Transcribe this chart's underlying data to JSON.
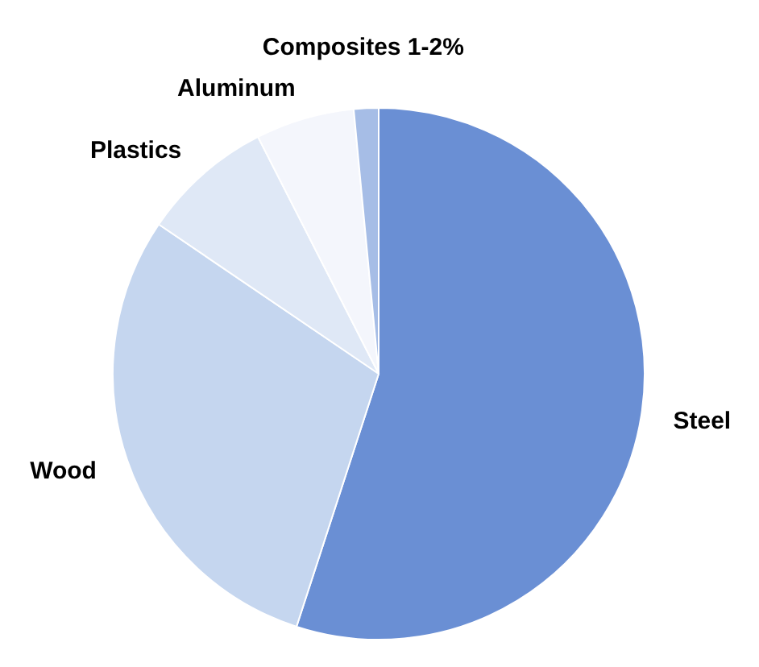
{
  "chart_data": {
    "type": "pie",
    "categories": [
      "Steel",
      "Wood",
      "Plastics",
      "Aluminum",
      "Composites 1-2%"
    ],
    "values": [
      55,
      29.5,
      8,
      6,
      1.5
    ],
    "colors": [
      "#6a8fd4",
      "#c5d6ef",
      "#dfe8f6",
      "#f4f6fc",
      "#a6bde6"
    ]
  }
}
